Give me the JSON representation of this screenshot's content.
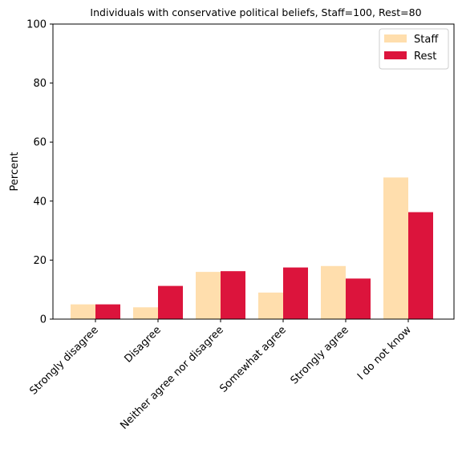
{
  "chart_data": {
    "type": "bar",
    "title": "Individuals with conservative political beliefs, Staff=100, Rest=80",
    "xlabel": "",
    "ylabel": "Percent",
    "ylim": [
      0,
      100
    ],
    "yticks": [
      0,
      20,
      40,
      60,
      80,
      100
    ],
    "categories": [
      "Strongly disagree",
      "Disagree",
      "Neither agree nor disagree",
      "Somewhat agree",
      "Strongly agree",
      "I do not know"
    ],
    "series": [
      {
        "name": "Staff",
        "color": "#FFDEAD",
        "values": [
          5.0,
          4.0,
          16.0,
          9.0,
          18.0,
          48.0
        ]
      },
      {
        "name": "Rest",
        "color": "#DC143C",
        "values": [
          5.0,
          11.25,
          16.25,
          17.5,
          13.75,
          36.25
        ]
      }
    ],
    "legend": "top-right",
    "grid": false
  }
}
